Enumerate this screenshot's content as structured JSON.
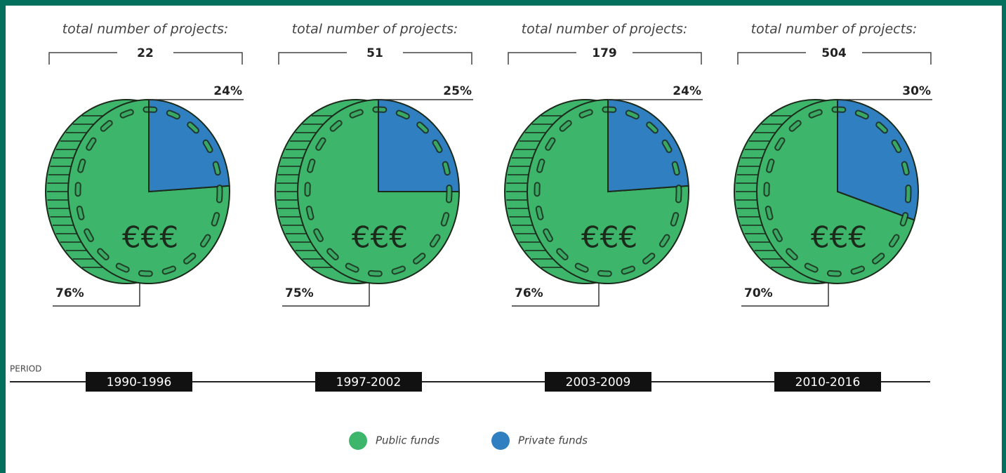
{
  "chart_data": [
    {
      "type": "pie",
      "title": "total number of projects:",
      "total": 22,
      "center_label": "€€€",
      "period": "1990-1996",
      "categories": [
        "Public funds",
        "Private funds"
      ],
      "values": [
        76,
        24
      ],
      "value_labels": [
        "76%",
        "24%"
      ],
      "colors": [
        "#3db56a",
        "#2f7fc1"
      ]
    },
    {
      "type": "pie",
      "title": "total number of projects:",
      "total": 51,
      "center_label": "€€€",
      "period": "1997-2002",
      "categories": [
        "Public funds",
        "Private funds"
      ],
      "values": [
        75,
        25
      ],
      "value_labels": [
        "75%",
        "25%"
      ],
      "colors": [
        "#3db56a",
        "#2f7fc1"
      ]
    },
    {
      "type": "pie",
      "title": "total number of projects:",
      "total": 179,
      "center_label": "€€€",
      "period": "2003-2009",
      "categories": [
        "Public funds",
        "Private funds"
      ],
      "values": [
        76,
        24
      ],
      "value_labels": [
        "76%",
        "24%"
      ],
      "colors": [
        "#3db56a",
        "#2f7fc1"
      ]
    },
    {
      "type": "pie",
      "title": "total number of projects:",
      "total": 504,
      "center_label": "€€€",
      "period": "2010-2016",
      "categories": [
        "Public funds",
        "Private funds"
      ],
      "values": [
        70,
        30
      ],
      "value_labels": [
        "70%",
        "30%"
      ],
      "colors": [
        "#3db56a",
        "#2f7fc1"
      ]
    }
  ],
  "timeline": {
    "label": "PERIOD"
  }
}
